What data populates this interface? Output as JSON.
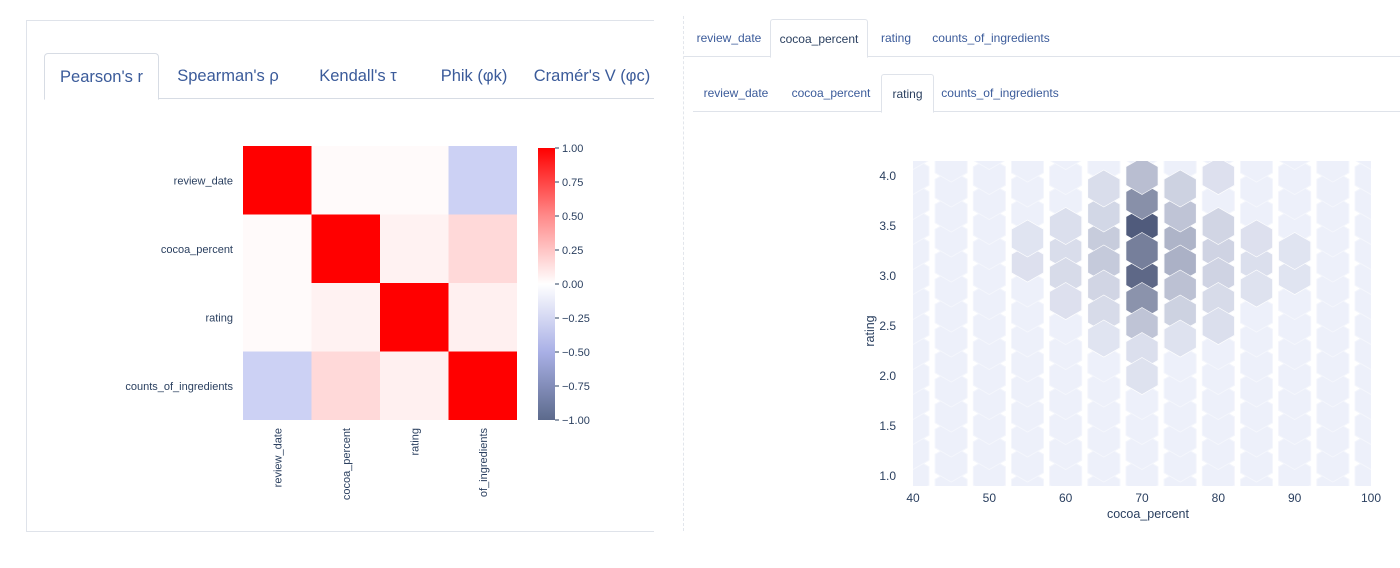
{
  "correlation_tabs": [
    {
      "label": "Pearson's r",
      "active": true
    },
    {
      "label": "Spearman's ρ",
      "active": false
    },
    {
      "label": "Kendall's τ",
      "active": false
    },
    {
      "label": "Phik (φk)",
      "active": false
    },
    {
      "label": "Cramér's V (φc)",
      "active": false
    }
  ],
  "interaction_tabs_x": [
    {
      "label": "review_date",
      "active": false
    },
    {
      "label": "cocoa_percent",
      "active": true
    },
    {
      "label": "rating",
      "active": false
    },
    {
      "label": "counts_of_ingredients",
      "active": false
    }
  ],
  "interaction_tabs_y": [
    {
      "label": "review_date",
      "active": false
    },
    {
      "label": "cocoa_percent",
      "active": false
    },
    {
      "label": "rating",
      "active": true
    },
    {
      "label": "counts_of_ingredients",
      "active": false
    }
  ],
  "colors": {
    "positive": "#ff0000",
    "neutral": "#ffffff",
    "negative": "#5c6a8c",
    "hex_low": "#e9ecf8",
    "hex_high": "#505b7c",
    "tab_text": "#3b5b9a",
    "axis_text": "#2a3f5f"
  },
  "chart_data": [
    {
      "type": "heatmap",
      "variables": [
        "review_date",
        "cocoa_percent",
        "rating",
        "counts_of_ingredients"
      ],
      "row_labels": [
        "review_date",
        "cocoa_percent",
        "rating",
        "counts_of_ingredients"
      ],
      "col_labels": [
        "review_date",
        "cocoa_percent",
        "rating",
        "counts_of_ingredients"
      ],
      "col_labels_visible": [
        "review_date",
        "cocoa_percent",
        "rating",
        "of_ingredients"
      ],
      "matrix": [
        [
          1.0,
          0.02,
          0.02,
          -0.4
        ],
        [
          0.02,
          1.0,
          0.05,
          0.15
        ],
        [
          0.02,
          0.05,
          1.0,
          0.06
        ],
        [
          -0.4,
          0.15,
          0.06,
          1.0
        ]
      ],
      "colorscale_range": [
        -1.0,
        1.0
      ],
      "colorbar_ticks": [
        "1.00",
        "0.75",
        "0.50",
        "0.25",
        "0.00",
        "−0.25",
        "−0.50",
        "−0.75",
        "−1.00"
      ]
    },
    {
      "type": "hexbin",
      "xlabel": "cocoa_percent",
      "ylabel": "rating",
      "xlim": [
        40,
        100
      ],
      "ylim": [
        0.9,
        4.15
      ],
      "xticks": [
        "40",
        "50",
        "60",
        "70",
        "80",
        "90",
        "100"
      ],
      "yticks": [
        "1.0",
        "1.5",
        "2.0",
        "2.5",
        "3.0",
        "3.5",
        "4.0"
      ],
      "bins": [
        {
          "x": 70,
          "y": 3.5,
          "count": 340
        },
        {
          "x": 70,
          "y": 3.0,
          "count": 290
        },
        {
          "x": 70,
          "y": 3.25,
          "count": 210
        },
        {
          "x": 70,
          "y": 3.75,
          "count": 160
        },
        {
          "x": 70,
          "y": 2.75,
          "count": 150
        },
        {
          "x": 70,
          "y": 4.0,
          "count": 50
        },
        {
          "x": 70,
          "y": 2.5,
          "count": 40
        },
        {
          "x": 75,
          "y": 3.375,
          "count": 70
        },
        {
          "x": 75,
          "y": 3.125,
          "count": 75
        },
        {
          "x": 75,
          "y": 3.625,
          "count": 40
        },
        {
          "x": 75,
          "y": 2.875,
          "count": 45
        },
        {
          "x": 75,
          "y": 2.625,
          "count": 20
        },
        {
          "x": 75,
          "y": 3.875,
          "count": 20
        },
        {
          "x": 65,
          "y": 3.375,
          "count": 28
        },
        {
          "x": 65,
          "y": 3.125,
          "count": 30
        },
        {
          "x": 65,
          "y": 3.625,
          "count": 14
        },
        {
          "x": 65,
          "y": 2.875,
          "count": 16
        },
        {
          "x": 65,
          "y": 2.625,
          "count": 10
        },
        {
          "x": 65,
          "y": 3.875,
          "count": 8
        },
        {
          "x": 80,
          "y": 3.25,
          "count": 18
        },
        {
          "x": 80,
          "y": 3.5,
          "count": 16
        },
        {
          "x": 80,
          "y": 3.0,
          "count": 18
        },
        {
          "x": 80,
          "y": 2.75,
          "count": 10
        },
        {
          "x": 80,
          "y": 4.0,
          "count": 5
        },
        {
          "x": 80,
          "y": 2.5,
          "count": 6
        },
        {
          "x": 60,
          "y": 3.25,
          "count": 8
        },
        {
          "x": 60,
          "y": 3.0,
          "count": 10
        },
        {
          "x": 60,
          "y": 3.5,
          "count": 6
        },
        {
          "x": 60,
          "y": 2.75,
          "count": 5
        },
        {
          "x": 85,
          "y": 3.125,
          "count": 6
        },
        {
          "x": 85,
          "y": 3.375,
          "count": 5
        },
        {
          "x": 85,
          "y": 2.875,
          "count": 4
        },
        {
          "x": 55,
          "y": 3.125,
          "count": 5
        },
        {
          "x": 55,
          "y": 3.375,
          "count": 3
        },
        {
          "x": 90,
          "y": 3.0,
          "count": 3
        },
        {
          "x": 90,
          "y": 3.25,
          "count": 3
        },
        {
          "x": 70,
          "y": 2.25,
          "count": 6
        },
        {
          "x": 70,
          "y": 2.0,
          "count": 4
        },
        {
          "x": 75,
          "y": 2.375,
          "count": 4
        },
        {
          "x": 65,
          "y": 2.375,
          "count": 3
        }
      ]
    }
  ]
}
